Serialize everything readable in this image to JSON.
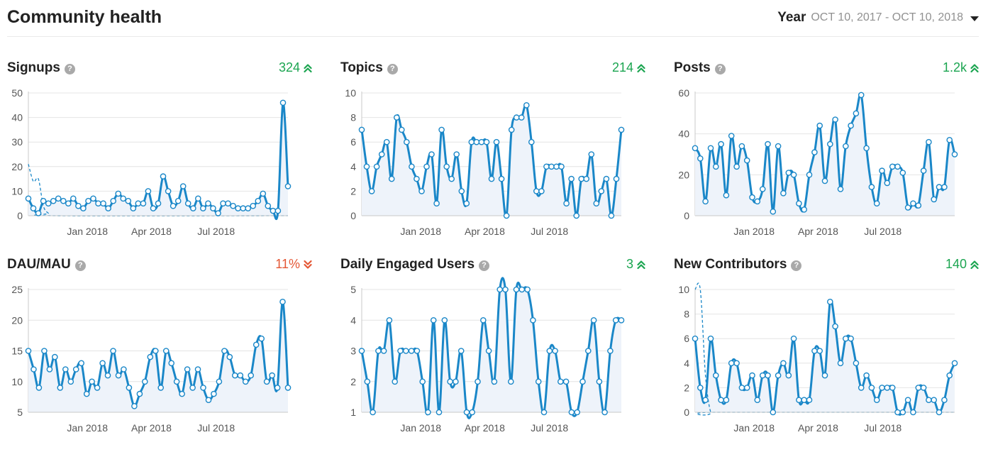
{
  "header": {
    "title": "Community health",
    "period_label": "Year",
    "period_range": "OCT 10, 2017 - OCT 10, 2018"
  },
  "colors": {
    "line": "#1a87c8",
    "area": "#eef3fa",
    "grid": "#e4e4e4",
    "up": "#1ca551",
    "down": "#e45735"
  },
  "panels": [
    {
      "title": "Signups",
      "trend_value": "324",
      "trend_direction": "up"
    },
    {
      "title": "Topics",
      "trend_value": "214",
      "trend_direction": "up"
    },
    {
      "title": "Posts",
      "trend_value": "1.2k",
      "trend_direction": "up"
    },
    {
      "title": "DAU/MAU",
      "trend_value": "11%",
      "trend_direction": "down"
    },
    {
      "title": "Daily Engaged Users",
      "trend_value": "3",
      "trend_direction": "up"
    },
    {
      "title": "New Contributors",
      "trend_value": "140",
      "trend_direction": "up"
    }
  ],
  "chart_data": [
    {
      "type": "line",
      "title": "Signups",
      "x_start": "2017-10-10",
      "x_end": "2018-10-10",
      "x_ticks": [
        {
          "date": "2018-01-01",
          "label": "Jan 2018"
        },
        {
          "date": "2018-04-01",
          "label": "Apr 2018"
        },
        {
          "date": "2018-07-01",
          "label": "Jul 2018"
        }
      ],
      "ylim": [
        0,
        50
      ],
      "y_ticks": [
        0,
        10,
        20,
        30,
        40,
        50
      ],
      "values": [
        7,
        3,
        1,
        6,
        5,
        6,
        7,
        6,
        5,
        7,
        4,
        3,
        6,
        7,
        5,
        5,
        3,
        6,
        9,
        7,
        6,
        3,
        5,
        5,
        10,
        3,
        5,
        16,
        10,
        4,
        6,
        12,
        5,
        3,
        7,
        3,
        5,
        3,
        1,
        5,
        5,
        4,
        3,
        3,
        3,
        4,
        6,
        9,
        4,
        2,
        2,
        46,
        12
      ],
      "prior_values": [
        21,
        14,
        15,
        4,
        1,
        0
      ]
    },
    {
      "type": "line",
      "title": "Topics",
      "x_start": "2017-10-10",
      "x_end": "2018-10-10",
      "x_ticks": [
        {
          "date": "2018-01-01",
          "label": "Jan 2018"
        },
        {
          "date": "2018-04-01",
          "label": "Apr 2018"
        },
        {
          "date": "2018-07-01",
          "label": "Jul 2018"
        }
      ],
      "ylim": [
        0,
        10
      ],
      "y_ticks": [
        0,
        2,
        4,
        6,
        8,
        10
      ],
      "values": [
        7,
        4,
        2,
        4,
        5,
        6,
        3,
        8,
        7,
        6,
        4,
        3,
        2,
        4,
        5,
        1,
        7,
        4,
        3,
        5,
        2,
        1,
        6,
        6,
        6,
        6,
        3,
        6,
        3,
        0,
        7,
        8,
        8,
        9,
        6,
        2,
        2,
        4,
        4,
        4,
        4,
        1,
        3,
        0,
        3,
        3,
        5,
        1,
        2,
        3,
        0,
        3,
        7
      ]
    },
    {
      "type": "line",
      "title": "Posts",
      "x_start": "2017-10-10",
      "x_end": "2018-10-10",
      "x_ticks": [
        {
          "date": "2018-01-01",
          "label": "Jan 2018"
        },
        {
          "date": "2018-04-01",
          "label": "Apr 2018"
        },
        {
          "date": "2018-07-01",
          "label": "Jul 2018"
        }
      ],
      "ylim": [
        0,
        60
      ],
      "y_ticks": [
        0,
        20,
        40,
        60
      ],
      "values": [
        33,
        28,
        7,
        33,
        24,
        35,
        10,
        39,
        24,
        34,
        27,
        9,
        7,
        13,
        35,
        2,
        34,
        11,
        21,
        20,
        6,
        3,
        20,
        31,
        44,
        17,
        35,
        47,
        13,
        34,
        44,
        50,
        59,
        33,
        14,
        6,
        22,
        16,
        24,
        24,
        21,
        4,
        6,
        5,
        22,
        36,
        8,
        14,
        14,
        37,
        30
      ]
    },
    {
      "type": "line",
      "title": "DAU/MAU",
      "x_start": "2017-10-10",
      "x_end": "2018-10-10",
      "x_ticks": [
        {
          "date": "2018-01-01",
          "label": "Jan 2018"
        },
        {
          "date": "2018-04-01",
          "label": "Apr 2018"
        },
        {
          "date": "2018-07-01",
          "label": "Jul 2018"
        }
      ],
      "ylim": [
        5,
        25
      ],
      "y_ticks": [
        5,
        10,
        15,
        20,
        25
      ],
      "values": [
        15,
        12,
        9,
        15,
        12,
        14,
        9,
        12,
        10,
        12,
        13,
        8,
        10,
        9,
        13,
        11,
        15,
        11,
        12,
        9,
        6,
        8,
        10,
        14,
        15,
        9,
        15,
        13,
        10,
        8,
        12,
        9,
        12,
        9,
        7,
        8,
        10,
        15,
        14,
        11,
        11,
        10,
        11,
        16,
        17,
        10,
        11,
        9,
        23,
        9
      ]
    },
    {
      "type": "line",
      "title": "Daily Engaged Users",
      "x_start": "2017-10-10",
      "x_end": "2018-10-10",
      "x_ticks": [
        {
          "date": "2018-01-01",
          "label": "Jan 2018"
        },
        {
          "date": "2018-04-01",
          "label": "Apr 2018"
        },
        {
          "date": "2018-07-01",
          "label": "Jul 2018"
        }
      ],
      "ylim": [
        1,
        5
      ],
      "y_ticks": [
        1,
        2,
        3,
        4,
        5
      ],
      "values": [
        3,
        2,
        1,
        3,
        3,
        4,
        2,
        3,
        3,
        3,
        3,
        2,
        1,
        4,
        1,
        4,
        2,
        2,
        3,
        1,
        1,
        2,
        4,
        3,
        2,
        5,
        5,
        2,
        5,
        5,
        5,
        4,
        2,
        1,
        3,
        3,
        2,
        2,
        1,
        1,
        2,
        3,
        4,
        2,
        1,
        3,
        4,
        4
      ]
    },
    {
      "type": "line",
      "title": "New Contributors",
      "x_start": "2017-10-10",
      "x_end": "2018-10-10",
      "x_ticks": [
        {
          "date": "2018-01-01",
          "label": "Jan 2018"
        },
        {
          "date": "2018-04-01",
          "label": "Apr 2018"
        },
        {
          "date": "2018-07-01",
          "label": "Jul 2018"
        }
      ],
      "ylim": [
        0,
        10
      ],
      "y_ticks": [
        0,
        2,
        4,
        6,
        8,
        10
      ],
      "values": [
        6,
        2,
        1,
        6,
        3,
        1,
        1,
        4,
        4,
        2,
        2,
        3,
        1,
        3,
        3,
        0,
        3,
        4,
        3,
        6,
        1,
        1,
        1,
        5,
        5,
        3,
        9,
        7,
        4,
        6,
        6,
        4,
        2,
        3,
        2,
        1,
        2,
        2,
        2,
        0,
        0,
        1,
        0,
        2,
        2,
        1,
        1,
        0,
        1,
        3,
        4
      ],
      "prior_values": [
        10,
        10,
        3,
        0,
        0
      ]
    }
  ]
}
